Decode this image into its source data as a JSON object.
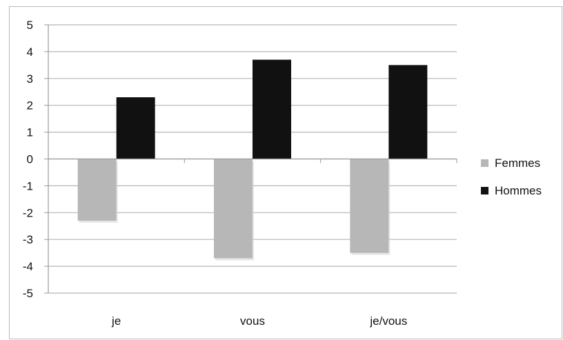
{
  "chart_data": {
    "type": "bar",
    "categories": [
      "je",
      "vous",
      "je/vous"
    ],
    "series": [
      {
        "name": "Femmes",
        "values": [
          -2.3,
          -3.7,
          -3.5
        ],
        "color": "#b7b7b7"
      },
      {
        "name": "Hommes",
        "values": [
          2.3,
          3.7,
          3.5
        ],
        "color": "#111111"
      }
    ],
    "ylim": [
      -5,
      5
    ],
    "yticks": [
      "5",
      "4",
      "3",
      "2",
      "1",
      "0",
      "-1",
      "-2",
      "-3",
      "-4",
      "-5"
    ],
    "grid": true,
    "legend": "right"
  }
}
